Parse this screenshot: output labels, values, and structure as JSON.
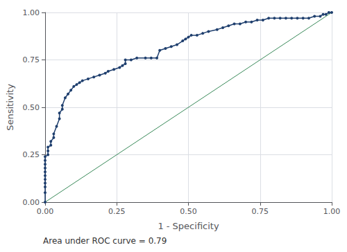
{
  "chart_data": {
    "type": "line",
    "xlabel": "1 - Specificity",
    "ylabel": "Sensitivity",
    "annotation": "Area under ROC curve = 0.79",
    "xlim": [
      0.0,
      1.0
    ],
    "ylim": [
      0.0,
      1.0
    ],
    "xticks": [
      {
        "value": 0.0,
        "label": "0.00"
      },
      {
        "value": 0.25,
        "label": "0.25"
      },
      {
        "value": 0.5,
        "label": "0.50"
      },
      {
        "value": 0.75,
        "label": "0.75"
      },
      {
        "value": 1.0,
        "label": "1.00"
      }
    ],
    "yticks": [
      {
        "value": 0.0,
        "label": "0.00"
      },
      {
        "value": 0.25,
        "label": "0.25"
      },
      {
        "value": 0.5,
        "label": "0.50"
      },
      {
        "value": 0.75,
        "label": "0.75"
      },
      {
        "value": 1.0,
        "label": "1.00"
      }
    ],
    "grid": true,
    "series": [
      {
        "type": "line",
        "color": "#3a8a5a",
        "x": [
          0,
          1
        ],
        "values": [
          0,
          1
        ]
      },
      {
        "type": "line",
        "color": "#1f3f6e",
        "marker": "circle",
        "x": [
          0.0,
          0.0,
          0.0,
          0.0,
          0.0,
          0.0,
          0.0,
          0.0,
          0.0,
          0.0,
          0.0,
          0.01,
          0.01,
          0.01,
          0.02,
          0.02,
          0.03,
          0.03,
          0.04,
          0.05,
          0.05,
          0.06,
          0.06,
          0.07,
          0.08,
          0.09,
          0.1,
          0.11,
          0.12,
          0.13,
          0.15,
          0.17,
          0.19,
          0.21,
          0.22,
          0.24,
          0.26,
          0.27,
          0.28,
          0.28,
          0.3,
          0.32,
          0.35,
          0.37,
          0.39,
          0.4,
          0.42,
          0.44,
          0.46,
          0.48,
          0.49,
          0.5,
          0.51,
          0.53,
          0.55,
          0.57,
          0.6,
          0.62,
          0.64,
          0.66,
          0.68,
          0.7,
          0.72,
          0.74,
          0.76,
          0.78,
          0.8,
          0.82,
          0.84,
          0.86,
          0.88,
          0.9,
          0.92,
          0.94,
          0.96,
          0.97,
          0.98,
          0.99,
          1.0
        ],
        "values": [
          0.0,
          0.05,
          0.08,
          0.1,
          0.12,
          0.14,
          0.16,
          0.18,
          0.2,
          0.22,
          0.24,
          0.25,
          0.27,
          0.29,
          0.3,
          0.32,
          0.34,
          0.36,
          0.4,
          0.44,
          0.47,
          0.49,
          0.51,
          0.55,
          0.57,
          0.59,
          0.61,
          0.62,
          0.63,
          0.64,
          0.65,
          0.66,
          0.67,
          0.68,
          0.69,
          0.7,
          0.71,
          0.72,
          0.73,
          0.75,
          0.75,
          0.76,
          0.76,
          0.76,
          0.76,
          0.8,
          0.81,
          0.82,
          0.83,
          0.85,
          0.86,
          0.87,
          0.88,
          0.88,
          0.89,
          0.9,
          0.91,
          0.92,
          0.93,
          0.94,
          0.94,
          0.95,
          0.95,
          0.96,
          0.96,
          0.97,
          0.97,
          0.97,
          0.97,
          0.97,
          0.97,
          0.97,
          0.97,
          0.98,
          0.98,
          0.99,
          0.99,
          1.0,
          1.0
        ]
      }
    ]
  }
}
